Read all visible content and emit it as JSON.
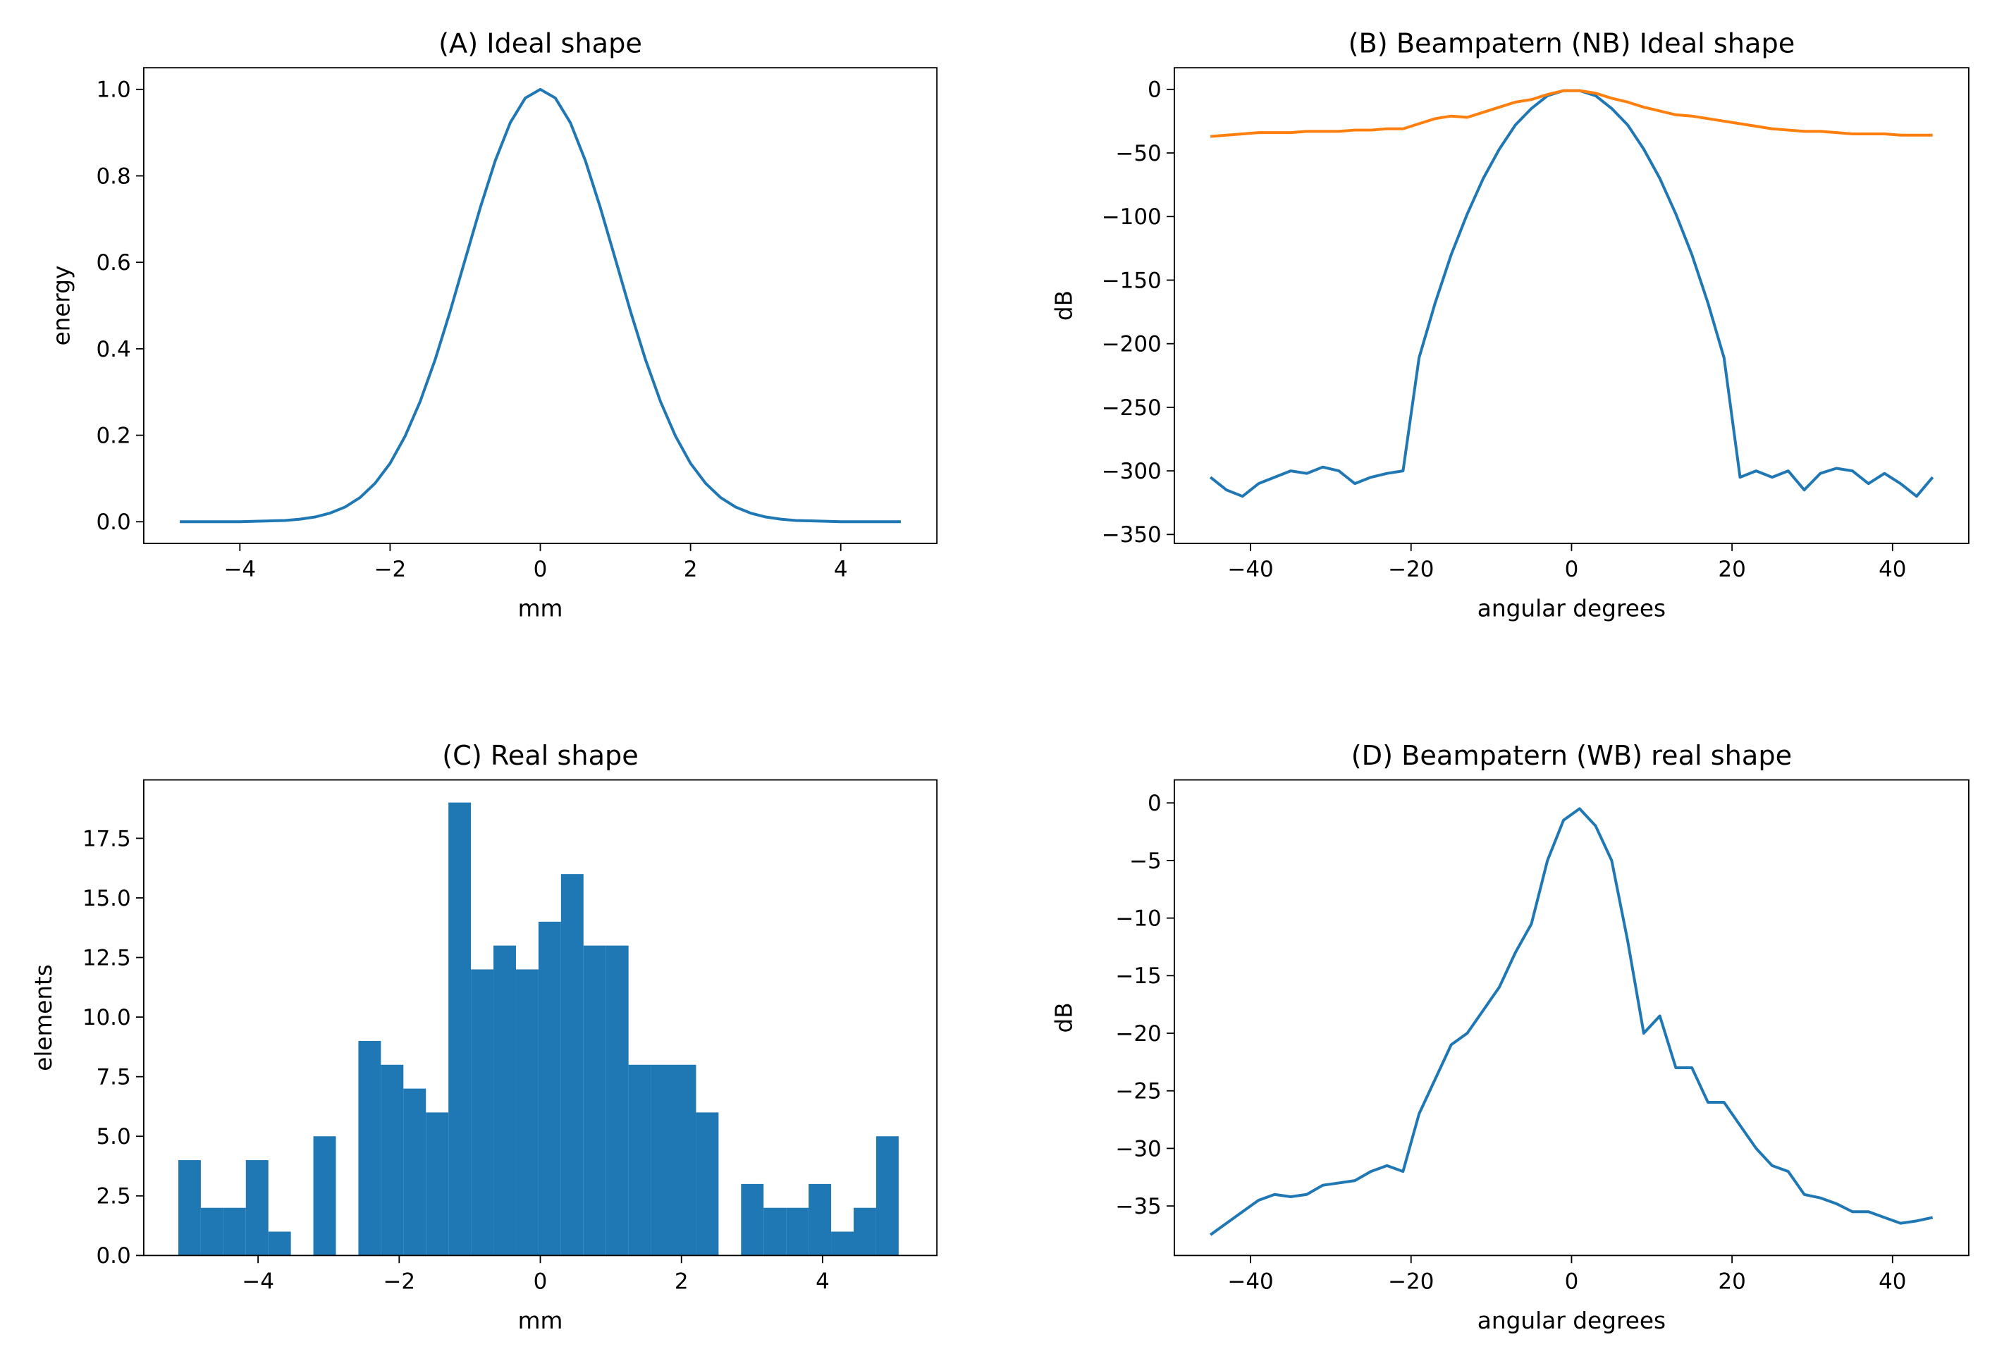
{
  "chart_data": [
    {
      "type": "line",
      "title": "(A) Ideal shape",
      "xlabel": "mm",
      "ylabel": "energy",
      "x": [
        -4.8,
        -4.6,
        -4.4,
        -4.2,
        -4.0,
        -3.8,
        -3.6,
        -3.4,
        -3.2,
        -3.0,
        -2.8,
        -2.6,
        -2.4,
        -2.2,
        -2.0,
        -1.8,
        -1.6,
        -1.4,
        -1.2,
        -1.0,
        -0.8,
        -0.6,
        -0.4,
        -0.2,
        0,
        0.2,
        0.4,
        0.6,
        0.8,
        1.0,
        1.2,
        1.4,
        1.6,
        1.8,
        2.0,
        2.2,
        2.4,
        2.6,
        2.8,
        3.0,
        3.2,
        3.4,
        3.6,
        3.8,
        4.0,
        4.2,
        4.4,
        4.6,
        4.8
      ],
      "series": [
        {
          "color": "#1f77b4",
          "values": [
            0,
            0,
            0,
            0,
            0,
            0.001,
            0.002,
            0.003,
            0.006,
            0.011,
            0.02,
            0.034,
            0.056,
            0.089,
            0.135,
            0.198,
            0.278,
            0.375,
            0.487,
            0.607,
            0.726,
            0.835,
            0.923,
            0.98,
            1,
            0.98,
            0.923,
            0.835,
            0.726,
            0.607,
            0.487,
            0.375,
            0.278,
            0.198,
            0.135,
            0.089,
            0.056,
            0.034,
            0.02,
            0.011,
            0.006,
            0.003,
            0.002,
            0.001,
            0,
            0,
            0,
            0,
            0
          ]
        }
      ],
      "xlim": [
        -5.28,
        5.28
      ],
      "xticks": [
        {
          "value": -4,
          "label": "−4"
        },
        {
          "value": -2,
          "label": "−2"
        },
        0,
        2,
        4
      ],
      "ylim": [
        -0.05,
        1.05
      ],
      "yticks": [
        {
          "value": 0,
          "label": "0.0"
        },
        0.2,
        0.4,
        0.6,
        0.8,
        {
          "value": 1,
          "label": "1.0"
        }
      ]
    },
    {
      "type": "line",
      "title": "(B) Beampatern (NB) Ideal shape",
      "xlabel": "angular degrees",
      "ylabel": "dB",
      "x": [
        -45,
        -43,
        -41,
        -39,
        -37,
        -35,
        -33,
        -31,
        -29,
        -27,
        -25,
        -23,
        -21,
        -19,
        -17,
        -15,
        -13,
        -11,
        -9,
        -7,
        -5,
        -3,
        -1,
        1,
        3,
        5,
        7,
        9,
        11,
        13,
        15,
        17,
        19,
        21,
        23,
        25,
        27,
        29,
        31,
        33,
        35,
        37,
        39,
        41,
        43,
        45
      ],
      "series": [
        {
          "color": "#1f77b4",
          "values": [
            -305,
            -315,
            -320,
            -310,
            -305,
            -300,
            -302,
            -297,
            -300,
            -310,
            -305,
            -302,
            -300,
            -211,
            -168,
            -130,
            -98,
            -70,
            -47,
            -28,
            -15,
            -5,
            -1,
            -1,
            -5,
            -15,
            -28,
            -47,
            -70,
            -98,
            -130,
            -168,
            -211,
            -305,
            -300,
            -305,
            -300,
            -315,
            -302,
            -298,
            -300,
            -310,
            -302,
            -310,
            -320,
            -305
          ]
        },
        {
          "color": "#ff7f0e",
          "values": [
            -37,
            -36,
            -35,
            -34,
            -34,
            -34,
            -33,
            -33,
            -33,
            -32,
            -32,
            -31,
            -31,
            -27,
            -23,
            -21,
            -22,
            -18,
            -14,
            -10,
            -8,
            -4,
            -1,
            -1,
            -3,
            -7,
            -10,
            -14,
            -17,
            -20,
            -21,
            -23,
            -25,
            -27,
            -29,
            -31,
            -32,
            -33,
            -33,
            -34,
            -35,
            -35,
            -35,
            -36,
            -36,
            -36
          ]
        }
      ],
      "xlim": [
        -49.5,
        49.5
      ],
      "xticks": [
        {
          "value": -40,
          "label": "−40"
        },
        {
          "value": -20,
          "label": "−20"
        },
        0,
        20,
        40
      ],
      "ylim": [
        -357,
        17
      ],
      "yticks": [
        {
          "value": -350,
          "label": "−350"
        },
        {
          "value": -300,
          "label": "−300"
        },
        {
          "value": -250,
          "label": "−250"
        },
        {
          "value": -200,
          "label": "−200"
        },
        {
          "value": -150,
          "label": "−150"
        },
        {
          "value": -100,
          "label": "−100"
        },
        {
          "value": -50,
          "label": "−50"
        },
        0
      ]
    },
    {
      "type": "histogram",
      "title": "(C) Real shape",
      "xlabel": "mm",
      "ylabel": "elements",
      "color": "#1f77b4",
      "bins": [
        -5.13,
        -4.811,
        -4.492,
        -4.173,
        -3.854,
        -3.535,
        -3.216,
        -2.897,
        -2.578,
        -2.259,
        -1.94,
        -1.621,
        -1.302,
        -0.983,
        -0.664,
        -0.345,
        -0.026,
        0.293,
        0.612,
        0.931,
        1.25,
        1.569,
        1.888,
        2.207,
        2.526,
        2.845,
        3.164,
        3.483,
        3.802,
        4.121,
        4.44,
        4.759,
        5.078
      ],
      "counts": [
        4,
        2,
        2,
        4,
        1,
        0,
        5,
        0,
        9,
        8,
        7,
        6,
        19,
        12,
        13,
        12,
        14,
        16,
        13,
        13,
        8,
        8,
        8,
        6,
        0,
        3,
        2,
        2,
        3,
        1,
        2,
        5
      ],
      "xlim": [
        -5.62,
        5.62
      ],
      "xticks": [
        {
          "value": -4,
          "label": "−4"
        },
        {
          "value": -2,
          "label": "−2"
        },
        0,
        2,
        4
      ],
      "ylim": [
        0,
        19.95
      ],
      "yticks": [
        {
          "value": 0,
          "label": "0.0"
        },
        2.5,
        {
          "value": 5,
          "label": "5.0"
        },
        7.5,
        {
          "value": 10,
          "label": "10.0"
        },
        12.5,
        {
          "value": 15,
          "label": "15.0"
        },
        17.5
      ]
    },
    {
      "type": "line",
      "title": "(D) Beampatern (WB) real shape",
      "xlabel": "angular degrees",
      "ylabel": "dB",
      "x": [
        -45,
        -43,
        -41,
        -39,
        -37,
        -35,
        -33,
        -31,
        -29,
        -27,
        -25,
        -23,
        -21,
        -19,
        -17,
        -15,
        -13,
        -11,
        -9,
        -7,
        -5,
        -3,
        -1,
        1,
        3,
        5,
        7,
        9,
        11,
        13,
        15,
        17,
        19,
        21,
        23,
        25,
        27,
        29,
        31,
        33,
        35,
        37,
        39,
        41,
        43,
        45
      ],
      "series": [
        {
          "color": "#1f77b4",
          "values": [
            -37.5,
            -36.5,
            -35.5,
            -34.5,
            -34,
            -34.2,
            -34,
            -33.2,
            -33,
            -32.8,
            -32,
            -31.5,
            -32,
            -27,
            -24,
            -21,
            -20,
            -18,
            -16,
            -13,
            -10.5,
            -5,
            -1.5,
            -0.5,
            -2,
            -5,
            -12,
            -20,
            -18.5,
            -23,
            -23,
            -26,
            -26,
            -28,
            -30,
            -31.5,
            -32,
            -34,
            -34.3,
            -34.8,
            -35.5,
            -35.5,
            -36,
            -36.5,
            -36.3,
            -36
          ]
        }
      ],
      "xlim": [
        -49.5,
        49.5
      ],
      "xticks": [
        {
          "value": -40,
          "label": "−40"
        },
        {
          "value": -20,
          "label": "−20"
        },
        0,
        20,
        40
      ],
      "ylim": [
        -39.3,
        2
      ],
      "yticks": [
        {
          "value": -35,
          "label": "−35"
        },
        {
          "value": -30,
          "label": "−30"
        },
        {
          "value": -25,
          "label": "−25"
        },
        {
          "value": -20,
          "label": "−20"
        },
        {
          "value": -15,
          "label": "−15"
        },
        {
          "value": -10,
          "label": "−10"
        },
        {
          "value": -5,
          "label": "−5"
        },
        0
      ]
    }
  ]
}
